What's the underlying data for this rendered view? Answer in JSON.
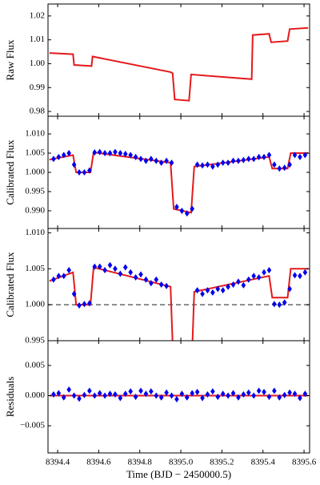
{
  "chart_data": [
    {
      "type": "line",
      "ylabel": "Raw Flux",
      "xlim": [
        8394.353,
        8395.627
      ],
      "ylim": [
        0.978,
        1.025
      ],
      "xticks": [
        8394.4,
        8394.6,
        8394.8,
        {
          "value": 8395.0,
          "label": "8395.0"
        },
        8395.2,
        8395.4,
        8395.6
      ],
      "yticks": [
        0.98,
        0.99,
        {
          "value": 1.0,
          "label": "1.00"
        },
        1.01,
        1.02
      ],
      "series": [
        {
          "style": "line",
          "color": "#e41a1c",
          "x": [
            8394.36,
            8394.475,
            8394.48,
            8394.565,
            8394.57,
            8394.95,
            8394.96,
            8394.97,
            8395.04,
            8395.05,
            8395.345,
            8395.35,
            8395.43,
            8395.44,
            8395.52,
            8395.53,
            8395.62
          ],
          "values": [
            1.0045,
            1.004,
            0.9995,
            0.999,
            1.003,
            0.9965,
            0.996,
            0.985,
            0.9845,
            0.9955,
            0.9935,
            1.012,
            1.0125,
            1.009,
            1.0095,
            1.0145,
            1.015
          ]
        }
      ]
    },
    {
      "type": "line",
      "ylabel": "Calibrated Flux",
      "xlim": [
        8394.353,
        8395.627
      ],
      "ylim": [
        0.9854,
        1.0146
      ],
      "xticks": [
        8394.4,
        8394.6,
        8394.8,
        {
          "value": 8395.0,
          "label": "8395.0"
        },
        8395.2,
        8395.4,
        8395.6
      ],
      "yticks": [
        {
          "value": 0.99,
          "label": "0.990"
        },
        {
          "value": 0.995,
          "label": "0.995"
        },
        {
          "value": 1.0,
          "label": "1.000"
        },
        {
          "value": 1.005,
          "label": "1.005"
        },
        {
          "value": 1.01,
          "label": "1.010"
        }
      ],
      "series": [
        {
          "style": "line",
          "color": "#e41a1c",
          "x": [
            8394.36,
            8394.475,
            8394.49,
            8394.56,
            8394.575,
            8394.95,
            8394.965,
            8395.05,
            8395.065,
            8395.43,
            8395.445,
            8395.52,
            8395.535,
            8395.62
          ],
          "values": [
            1.0033,
            1.0045,
            1.0,
            1.0,
            1.0052,
            1.0025,
            0.9905,
            0.9895,
            1.0015,
            1.004,
            1.001,
            1.001,
            1.005,
            1.005
          ]
        },
        {
          "style": "points",
          "color": "#0000ee",
          "x": [
            8394.38,
            8394.405,
            8394.43,
            8394.455,
            8394.48,
            8394.505,
            8394.53,
            8394.555,
            8394.58,
            8394.605,
            8394.63,
            8394.655,
            8394.68,
            8394.705,
            8394.73,
            8394.755,
            8394.78,
            8394.805,
            8394.83,
            8394.855,
            8394.88,
            8394.905,
            8394.93,
            8394.955,
            8394.98,
            8395.005,
            8395.03,
            8395.055,
            8395.08,
            8395.105,
            8395.13,
            8395.155,
            8395.18,
            8395.205,
            8395.23,
            8395.255,
            8395.28,
            8395.305,
            8395.33,
            8395.355,
            8395.38,
            8395.405,
            8395.43,
            8395.455,
            8395.48,
            8395.505,
            8395.53,
            8395.555,
            8395.58,
            8395.605
          ],
          "values": [
            1.0035,
            1.004,
            1.0045,
            1.005,
            1.002,
            1.0,
            1.0,
            1.0005,
            1.0052,
            1.0053,
            1.005,
            1.005,
            1.0053,
            1.005,
            1.0048,
            1.0045,
            1.004,
            1.0035,
            1.003,
            1.0035,
            1.003,
            1.0025,
            1.003,
            1.0025,
            0.991,
            0.99,
            0.9893,
            0.9905,
            1.002,
            1.0018,
            1.002,
            1.0015,
            1.002,
            1.0025,
            1.0025,
            1.003,
            1.003,
            1.0032,
            1.0035,
            1.0035,
            1.004,
            1.004,
            1.0045,
            1.002,
            1.001,
            1.0012,
            1.002,
            1.0045,
            1.004,
            1.0045
          ]
        }
      ]
    },
    {
      "type": "line",
      "ylabel": "Calibrated Flux",
      "xlim": [
        8394.353,
        8395.627
      ],
      "ylim": [
        0.995,
        1.0106
      ],
      "xticks": [
        8394.4,
        8394.6,
        8394.8,
        {
          "value": 8395.0,
          "label": "8395.0"
        },
        8395.2,
        8395.4,
        8395.6
      ],
      "yticks": [
        {
          "value": 0.995,
          "label": "0.995"
        },
        {
          "value": 1.0,
          "label": "1.000"
        },
        {
          "value": 1.005,
          "label": "1.005"
        },
        {
          "value": 1.01,
          "label": "1.010"
        }
      ],
      "reference_line": 1.0,
      "series": [
        {
          "style": "line",
          "color": "#e41a1c",
          "x": [
            8394.36,
            8394.475,
            8394.49,
            8394.56,
            8394.575,
            8394.95,
            8394.965,
            8395.05,
            8395.065,
            8395.43,
            8395.445,
            8395.52,
            8395.535,
            8395.62
          ],
          "values": [
            1.0033,
            1.0045,
            1.0,
            1.0,
            1.0052,
            1.0025,
            0.9905,
            0.9895,
            1.0018,
            1.004,
            1.001,
            1.001,
            1.005,
            1.005
          ]
        },
        {
          "style": "points",
          "color": "#0000ee",
          "x": [
            8394.38,
            8394.405,
            8394.43,
            8394.455,
            8394.48,
            8394.505,
            8394.53,
            8394.555,
            8394.58,
            8394.605,
            8394.63,
            8394.655,
            8394.68,
            8394.705,
            8394.73,
            8394.755,
            8394.78,
            8394.805,
            8394.83,
            8394.855,
            8394.88,
            8394.905,
            8394.93,
            8395.08,
            8395.105,
            8395.13,
            8395.155,
            8395.18,
            8395.205,
            8395.23,
            8395.255,
            8395.28,
            8395.305,
            8395.33,
            8395.355,
            8395.38,
            8395.405,
            8395.43,
            8395.455,
            8395.48,
            8395.505,
            8395.53,
            8395.555,
            8395.58,
            8395.605
          ],
          "values": [
            1.0035,
            1.004,
            1.004,
            1.0048,
            1.0015,
            0.9999,
            1.0001,
            1.0002,
            1.0053,
            1.0053,
            1.0048,
            1.0055,
            1.005,
            1.0043,
            1.0052,
            1.0045,
            1.0038,
            1.0042,
            1.0035,
            1.003,
            1.0035,
            1.0028,
            1.0026,
            1.002,
            1.0015,
            1.002,
            1.0017,
            1.0022,
            1.002,
            1.0025,
            1.0028,
            1.0032,
            1.0027,
            1.0035,
            1.004,
            1.0038,
            1.0045,
            1.0048,
            1.0001,
            1.0,
            1.0003,
            1.0022,
            1.0041,
            1.004,
            1.0045
          ]
        }
      ]
    },
    {
      "type": "line",
      "ylabel": "Residuals",
      "xlabel": "Time (BJD − 2450000.5)",
      "xlim": [
        8394.353,
        8395.627
      ],
      "ylim": [
        -0.0095,
        0.0091
      ],
      "xticks": [
        8394.4,
        8394.6,
        8394.8,
        {
          "value": 8395.0,
          "label": "8395.0"
        },
        8395.2,
        8395.4,
        8395.6
      ],
      "yticks": [
        {
          "value": -0.005,
          "label": "−0.005"
        },
        {
          "value": 0.0,
          "label": "0.000"
        },
        {
          "value": 0.005,
          "label": "0.005"
        }
      ],
      "series": [
        {
          "style": "line",
          "color": "#e41a1c",
          "x": [
            8394.36,
            8395.62
          ],
          "values": [
            0.0,
            0.0
          ]
        },
        {
          "style": "points",
          "color": "#0000ee",
          "x": [
            8394.38,
            8394.405,
            8394.43,
            8394.455,
            8394.48,
            8394.505,
            8394.53,
            8394.555,
            8394.58,
            8394.605,
            8394.63,
            8394.655,
            8394.68,
            8394.705,
            8394.73,
            8394.755,
            8394.78,
            8394.805,
            8394.83,
            8394.855,
            8394.88,
            8394.905,
            8394.93,
            8394.955,
            8394.98,
            8395.005,
            8395.03,
            8395.055,
            8395.08,
            8395.105,
            8395.13,
            8395.155,
            8395.18,
            8395.205,
            8395.23,
            8395.255,
            8395.28,
            8395.305,
            8395.33,
            8395.355,
            8395.38,
            8395.405,
            8395.43,
            8395.455,
            8395.48,
            8395.505,
            8395.53,
            8395.555,
            8395.58,
            8395.605
          ],
          "values": [
            0.0002,
            0.0004,
            -0.0003,
            0.001,
            0.0,
            -0.0005,
            0.0001,
            0.0008,
            0.0,
            0.0004,
            0.0,
            0.0003,
            0.0002,
            -0.0004,
            0.0003,
            0.0007,
            -0.0002,
            0.0008,
            0.0003,
            0.0007,
            0.0,
            -0.0003,
            0.0005,
            0.0,
            -0.0006,
            0.0003,
            -0.0003,
            0.0004,
            0.0006,
            -0.0004,
            0.0002,
            0.0007,
            -0.0002,
            0.0003,
            0.0,
            0.0004,
            -0.0003,
            0.0002,
            0.0005,
            0.0,
            0.0008,
            0.0006,
            -0.0002,
            0.0008,
            -0.0003,
            0.0001,
            0.0005,
            0.0003,
            -0.0004,
            0.0003
          ]
        }
      ]
    }
  ]
}
